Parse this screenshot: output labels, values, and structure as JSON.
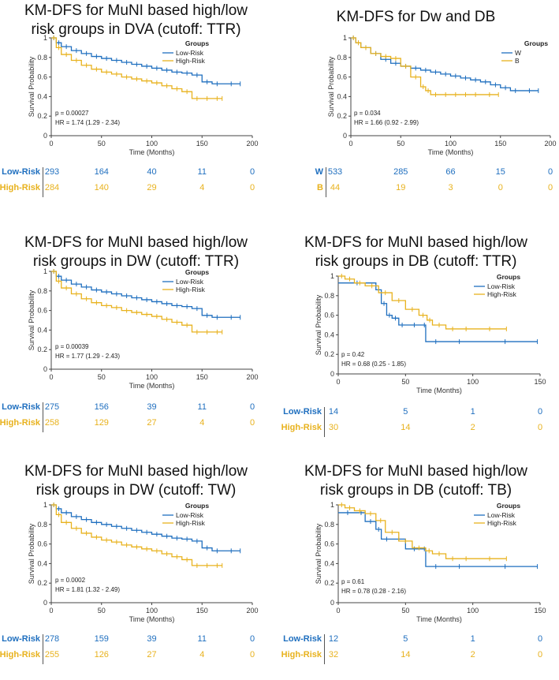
{
  "colors": {
    "low": "#1f6fbf",
    "high": "#e8b21e"
  },
  "common": {
    "ylabel": "Survival Probability",
    "xlabel": "Time (Months)",
    "legend_title": "Groups"
  },
  "chart_data": [
    {
      "type": "line",
      "title_lines": [
        "KM-DFS for MuNI based high/low",
        "risk groups in DVA (cutoff: TTR)"
      ],
      "xlim": [
        0,
        200
      ],
      "ylim": [
        0,
        1
      ],
      "xticks": [
        0,
        50,
        100,
        150,
        200
      ],
      "yticks": [
        0,
        0.2,
        0.4,
        0.6,
        0.8,
        1
      ],
      "xlabel": "Time (Months)",
      "ylabel": "Survival Probability",
      "legend_title": "Groups",
      "p_text": "p = 0.00027",
      "hr_text": "HR = 1.74 (1.29 - 2.34)",
      "series": [
        {
          "name": "Low-Risk",
          "color_key": "low",
          "x": [
            0,
            5,
            10,
            20,
            30,
            40,
            50,
            60,
            70,
            80,
            90,
            100,
            110,
            120,
            130,
            140,
            150,
            160,
            170,
            188
          ],
          "y": [
            1,
            0.95,
            0.91,
            0.87,
            0.84,
            0.81,
            0.79,
            0.77,
            0.75,
            0.73,
            0.71,
            0.69,
            0.67,
            0.65,
            0.64,
            0.62,
            0.55,
            0.53,
            0.53,
            0.53
          ]
        },
        {
          "name": "High-Risk",
          "color_key": "high",
          "x": [
            0,
            5,
            10,
            20,
            30,
            40,
            50,
            60,
            70,
            80,
            90,
            100,
            110,
            120,
            130,
            140,
            150,
            160,
            170
          ],
          "y": [
            1,
            0.9,
            0.83,
            0.77,
            0.72,
            0.68,
            0.65,
            0.63,
            0.6,
            0.58,
            0.56,
            0.54,
            0.51,
            0.48,
            0.45,
            0.38,
            0.38,
            0.38,
            0.38
          ]
        }
      ],
      "risk_table": {
        "times": [
          0,
          50,
          100,
          150,
          200
        ],
        "rows": [
          {
            "label": "Low-Risk",
            "color_key": "low",
            "values": [
              293,
              164,
              40,
              11,
              0
            ]
          },
          {
            "label": "High-Risk",
            "color_key": "high",
            "values": [
              284,
              140,
              29,
              4,
              0
            ]
          }
        ]
      }
    },
    {
      "type": "line",
      "title_lines": [
        "KM-DFS for Dw and DB"
      ],
      "xlim": [
        0,
        200
      ],
      "ylim": [
        0,
        1
      ],
      "xticks": [
        0,
        50,
        100,
        150,
        200
      ],
      "yticks": [
        0,
        0.2,
        0.4,
        0.6,
        0.8,
        1
      ],
      "xlabel": "Time (Months)",
      "ylabel": "Survival Probability",
      "legend_title": "Groups",
      "p_text": "p = 0.034",
      "hr_text": "HR = 1.66 (0.92 - 2.99)",
      "series": [
        {
          "name": "W",
          "color_key": "low",
          "x": [
            0,
            5,
            10,
            20,
            30,
            40,
            50,
            60,
            70,
            80,
            90,
            100,
            110,
            120,
            130,
            140,
            150,
            160,
            170,
            188
          ],
          "y": [
            1,
            0.95,
            0.9,
            0.84,
            0.78,
            0.74,
            0.71,
            0.69,
            0.67,
            0.65,
            0.63,
            0.61,
            0.59,
            0.57,
            0.55,
            0.52,
            0.49,
            0.46,
            0.46,
            0.46
          ]
        },
        {
          "name": "B",
          "color_key": "high",
          "x": [
            0,
            5,
            10,
            20,
            30,
            40,
            50,
            60,
            70,
            75,
            80,
            90,
            100,
            110,
            120,
            130,
            148
          ],
          "y": [
            1,
            0.95,
            0.9,
            0.84,
            0.81,
            0.79,
            0.71,
            0.6,
            0.5,
            0.46,
            0.42,
            0.42,
            0.42,
            0.42,
            0.42,
            0.42,
            0.42
          ]
        }
      ],
      "risk_table": {
        "times": [
          0,
          50,
          100,
          150,
          200
        ],
        "rows": [
          {
            "label": "W",
            "color_key": "low",
            "values": [
              533,
              285,
              66,
              15,
              0
            ]
          },
          {
            "label": "B",
            "color_key": "high",
            "values": [
              44,
              19,
              3,
              0,
              0
            ]
          }
        ]
      }
    },
    {
      "type": "line",
      "title_lines": [
        "KM-DFS for MuNI based high/low",
        "risk groups in DW (cutoff: TTR)"
      ],
      "xlim": [
        0,
        200
      ],
      "ylim": [
        0,
        1
      ],
      "xticks": [
        0,
        50,
        100,
        150,
        200
      ],
      "yticks": [
        0,
        0.2,
        0.4,
        0.6,
        0.8,
        1
      ],
      "xlabel": "Time (Months)",
      "ylabel": "Survival Probability",
      "legend_title": "Groups",
      "p_text": "p = 0.00039",
      "hr_text": "HR = 1.77 (1.29 - 2.43)",
      "series": [
        {
          "name": "Low-Risk",
          "color_key": "low",
          "x": [
            0,
            5,
            10,
            20,
            30,
            40,
            50,
            60,
            70,
            80,
            90,
            100,
            110,
            120,
            130,
            140,
            150,
            160,
            170,
            188
          ],
          "y": [
            1,
            0.95,
            0.91,
            0.87,
            0.84,
            0.81,
            0.79,
            0.77,
            0.75,
            0.73,
            0.71,
            0.69,
            0.67,
            0.65,
            0.64,
            0.62,
            0.55,
            0.53,
            0.53,
            0.53
          ]
        },
        {
          "name": "High-Risk",
          "color_key": "high",
          "x": [
            0,
            5,
            10,
            20,
            30,
            40,
            50,
            60,
            70,
            80,
            90,
            100,
            110,
            120,
            130,
            140,
            150,
            160,
            170
          ],
          "y": [
            1,
            0.9,
            0.83,
            0.77,
            0.72,
            0.68,
            0.65,
            0.63,
            0.6,
            0.58,
            0.56,
            0.54,
            0.51,
            0.48,
            0.45,
            0.38,
            0.38,
            0.38,
            0.38
          ]
        }
      ],
      "risk_table": {
        "times": [
          0,
          50,
          100,
          150,
          200
        ],
        "rows": [
          {
            "label": "Low-Risk",
            "color_key": "low",
            "values": [
              275,
              156,
              39,
              11,
              0
            ]
          },
          {
            "label": "High-Risk",
            "color_key": "high",
            "values": [
              258,
              129,
              27,
              4,
              0
            ]
          }
        ]
      }
    },
    {
      "type": "line",
      "title_lines": [
        "KM-DFS for MuNI based high/low",
        "risk groups in DB (cutoff: TTR)"
      ],
      "xlim": [
        0,
        150
      ],
      "ylim": [
        0,
        1
      ],
      "xticks": [
        0,
        50,
        100,
        150
      ],
      "yticks": [
        0,
        0.2,
        0.4,
        0.6,
        0.8,
        1
      ],
      "xlabel": "Time (Months)",
      "ylabel": "Survival Probability",
      "legend_title": "Groups",
      "p_text": "p = 0.42",
      "hr_text": "HR = 0.68 (0.25 - 1.85)",
      "series": [
        {
          "name": "Low-Risk",
          "color_key": "low",
          "x": [
            0,
            28,
            32,
            36,
            40,
            45,
            50,
            63,
            65,
            80,
            100,
            148
          ],
          "y": [
            0.93,
            0.86,
            0.72,
            0.6,
            0.57,
            0.5,
            0.5,
            0.5,
            0.33,
            0.33,
            0.33,
            0.33
          ]
        },
        {
          "name": "High-Risk",
          "color_key": "high",
          "x": [
            0,
            5,
            12,
            20,
            30,
            40,
            50,
            60,
            66,
            70,
            80,
            90,
            100,
            125
          ],
          "y": [
            1,
            0.97,
            0.93,
            0.9,
            0.83,
            0.75,
            0.66,
            0.6,
            0.55,
            0.5,
            0.46,
            0.46,
            0.46,
            0.46
          ]
        }
      ],
      "risk_table": {
        "times": [
          0,
          50,
          100,
          150
        ],
        "rows": [
          {
            "label": "Low-Risk",
            "color_key": "low",
            "values": [
              14,
              5,
              1,
              0
            ]
          },
          {
            "label": "High-Risk",
            "color_key": "high",
            "values": [
              30,
              14,
              2,
              0
            ]
          }
        ]
      }
    },
    {
      "type": "line",
      "title_lines": [
        "KM-DFS for MuNI based high/low",
        "risk groups in DW (cutoff: TW)"
      ],
      "xlim": [
        0,
        200
      ],
      "ylim": [
        0,
        1
      ],
      "xticks": [
        0,
        50,
        100,
        150,
        200
      ],
      "yticks": [
        0,
        0.2,
        0.4,
        0.6,
        0.8,
        1
      ],
      "xlabel": "Time (Months)",
      "ylabel": "Survival Probability",
      "legend_title": "Groups",
      "p_text": "p = 0.0002",
      "hr_text": "HR = 1.81 (1.32 - 2.49)",
      "series": [
        {
          "name": "Low-Risk",
          "color_key": "low",
          "x": [
            0,
            5,
            10,
            20,
            30,
            40,
            50,
            60,
            70,
            80,
            90,
            100,
            110,
            120,
            130,
            140,
            150,
            160,
            170,
            188
          ],
          "y": [
            1,
            0.96,
            0.92,
            0.88,
            0.85,
            0.82,
            0.8,
            0.78,
            0.76,
            0.74,
            0.72,
            0.7,
            0.68,
            0.66,
            0.65,
            0.63,
            0.56,
            0.53,
            0.53,
            0.53
          ]
        },
        {
          "name": "High-Risk",
          "color_key": "high",
          "x": [
            0,
            5,
            10,
            20,
            30,
            40,
            50,
            60,
            70,
            80,
            90,
            100,
            110,
            120,
            130,
            140,
            150,
            160,
            170
          ],
          "y": [
            1,
            0.9,
            0.82,
            0.76,
            0.71,
            0.67,
            0.64,
            0.62,
            0.59,
            0.57,
            0.55,
            0.53,
            0.5,
            0.47,
            0.44,
            0.38,
            0.38,
            0.38,
            0.38
          ]
        }
      ],
      "risk_table": {
        "times": [
          0,
          50,
          100,
          150,
          200
        ],
        "rows": [
          {
            "label": "Low-Risk",
            "color_key": "low",
            "values": [
              278,
              159,
              39,
              11,
              0
            ]
          },
          {
            "label": "High-Risk",
            "color_key": "high",
            "values": [
              255,
              126,
              27,
              4,
              0
            ]
          }
        ]
      }
    },
    {
      "type": "line",
      "title_lines": [
        "KM-DFS for MuNI based high/low",
        "risk groups in DB (cutoff: TB)"
      ],
      "xlim": [
        0,
        150
      ],
      "ylim": [
        0,
        1
      ],
      "xticks": [
        0,
        50,
        100,
        150
      ],
      "yticks": [
        0,
        0.2,
        0.4,
        0.6,
        0.8,
        1
      ],
      "xlabel": "Time (Months)",
      "ylabel": "Survival Probability",
      "legend_title": "Groups",
      "p_text": "p = 0.61",
      "hr_text": "HR = 0.78 (0.28 - 2.16)",
      "series": [
        {
          "name": "Low-Risk",
          "color_key": "low",
          "x": [
            0,
            14,
            20,
            28,
            32,
            40,
            50,
            63,
            65,
            80,
            100,
            148
          ],
          "y": [
            0.92,
            0.92,
            0.83,
            0.75,
            0.65,
            0.65,
            0.55,
            0.55,
            0.37,
            0.37,
            0.37,
            0.37
          ]
        },
        {
          "name": "High-Risk",
          "color_key": "high",
          "x": [
            0,
            5,
            12,
            20,
            28,
            35,
            45,
            55,
            65,
            70,
            80,
            90,
            100,
            125
          ],
          "y": [
            1,
            0.97,
            0.94,
            0.91,
            0.84,
            0.72,
            0.63,
            0.56,
            0.53,
            0.5,
            0.45,
            0.45,
            0.45,
            0.45
          ]
        }
      ],
      "risk_table": {
        "times": [
          0,
          50,
          100,
          150
        ],
        "rows": [
          {
            "label": "Low-Risk",
            "color_key": "low",
            "values": [
              12,
              5,
              1,
              0
            ]
          },
          {
            "label": "High-Risk",
            "color_key": "high",
            "values": [
              32,
              14,
              2,
              0
            ]
          }
        ]
      }
    }
  ]
}
